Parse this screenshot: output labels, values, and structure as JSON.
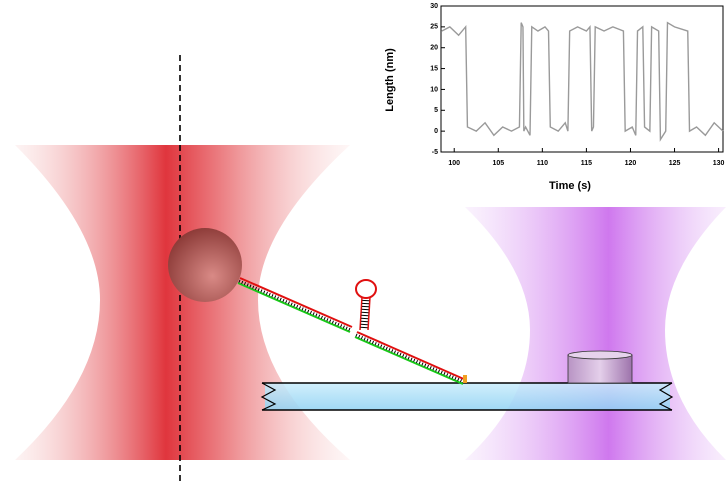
{
  "chart_data": {
    "type": "line",
    "x_label": "Time (s)",
    "y_label": "Length (nm)",
    "x": [
      98.6,
      99.5,
      100.5,
      101.3,
      101.5,
      102.5,
      103.5,
      104.5,
      105.5,
      106.5,
      107.4,
      107.6,
      107.8,
      107.9,
      108.1,
      108.6,
      108.8,
      109.5,
      110.3,
      110.7,
      110.9,
      111.8,
      112.6,
      112.9,
      113.1,
      114,
      115,
      115.4,
      115.6,
      115.8,
      116,
      117,
      118,
      119.2,
      119.4,
      120.2,
      120.6,
      120.8,
      121.4,
      121.6,
      122.2,
      122.4,
      123.2,
      123.4,
      124,
      124.2,
      125,
      126.5,
      126.7,
      127.5,
      128.5,
      129.5,
      130.5
    ],
    "series": [
      {
        "color": "#9a9a9a",
        "values": [
          24,
          25,
          23,
          25,
          1,
          0,
          2,
          -1,
          1,
          0,
          1,
          26,
          25,
          0,
          1,
          -1,
          25,
          24,
          25,
          24,
          1,
          0,
          2,
          0,
          24,
          25,
          24,
          25,
          0,
          1,
          25,
          24,
          25,
          24,
          0,
          1,
          -1,
          24,
          25,
          1,
          0,
          25,
          24,
          -2,
          0,
          26,
          25,
          24,
          0,
          1,
          -1,
          2,
          0
        ]
      }
    ],
    "xlim": [
      98.5,
      130.5
    ],
    "xticks": [
      100,
      105,
      110,
      115,
      120,
      125,
      130
    ],
    "ylim": [
      -5,
      30
    ],
    "yticks": [
      -5,
      0,
      5,
      10,
      15,
      20,
      25,
      30
    ]
  }
}
